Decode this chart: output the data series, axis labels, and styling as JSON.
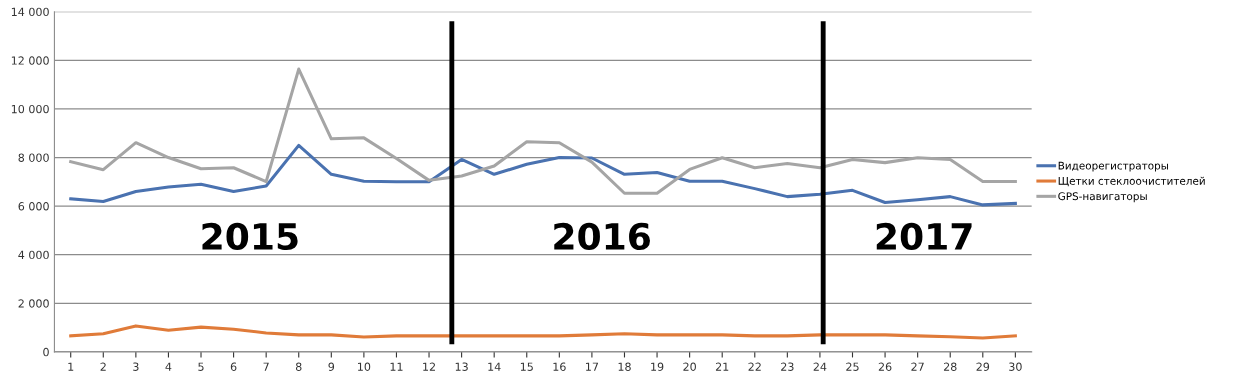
{
  "chart_data": {
    "type": "line",
    "x": [
      1,
      2,
      3,
      4,
      5,
      6,
      7,
      8,
      9,
      10,
      11,
      12,
      13,
      14,
      15,
      16,
      17,
      18,
      19,
      20,
      21,
      22,
      23,
      24,
      25,
      26,
      27,
      28,
      29,
      30
    ],
    "series": [
      {
        "name": "Видеорегистраторы",
        "color": "#4a72b0",
        "values": [
          6300,
          6190,
          6600,
          6790,
          6900,
          6600,
          6830,
          8500,
          7310,
          7020,
          7000,
          7000,
          7920,
          7310,
          7720,
          8000,
          7980,
          7310,
          7380,
          7020,
          7020,
          6720,
          6390,
          6490,
          6650,
          6150,
          6260,
          6390,
          6050,
          6110
        ]
      },
      {
        "name": "Щетки стеклоочистителей",
        "color": "#e07b39",
        "values": [
          660,
          750,
          1070,
          890,
          1020,
          930,
          780,
          700,
          700,
          610,
          660,
          660,
          660,
          660,
          660,
          660,
          700,
          750,
          700,
          700,
          700,
          660,
          660,
          700,
          700,
          700,
          660,
          620,
          570,
          660
        ]
      },
      {
        "name": "GPS-навигаторы",
        "color": "#a5a5a5",
        "values": [
          7830,
          7500,
          8610,
          8000,
          7540,
          7580,
          7010,
          11640,
          8770,
          8810,
          7960,
          7060,
          7240,
          7650,
          8650,
          8610,
          7810,
          6530,
          6530,
          7510,
          7990,
          7580,
          7750,
          7580,
          7920,
          7790,
          7990,
          7920,
          7010,
          7010
        ]
      }
    ],
    "xlim": [
      0.5,
      30.5
    ],
    "xticks": [
      1,
      2,
      3,
      4,
      5,
      6,
      7,
      8,
      9,
      10,
      11,
      12,
      13,
      14,
      15,
      16,
      17,
      18,
      19,
      20,
      21,
      22,
      23,
      24,
      25,
      26,
      27,
      28,
      29,
      30
    ],
    "ylim": [
      0,
      14000
    ],
    "yticks": [
      {
        "value": 0,
        "label": "0"
      },
      {
        "value": 2000,
        "label": "2 000"
      },
      {
        "value": 4000,
        "label": "4 000"
      },
      {
        "value": 6000,
        "label": "6 000"
      },
      {
        "value": 8000,
        "label": "8 000"
      },
      {
        "value": 10000,
        "label": "10 000"
      },
      {
        "value": 12000,
        "label": "12 000"
      },
      {
        "value": 14000,
        "label": "14 000"
      }
    ],
    "ref_lines": [
      {
        "axis": "x",
        "value": 12.7,
        "color": "#000000"
      },
      {
        "axis": "x",
        "value": 24.1,
        "color": "#000000"
      }
    ],
    "annotations": [
      "2015",
      "2016",
      "2017"
    ],
    "grid": "y",
    "legend": "right",
    "marker": "none",
    "line_style": "solid"
  }
}
